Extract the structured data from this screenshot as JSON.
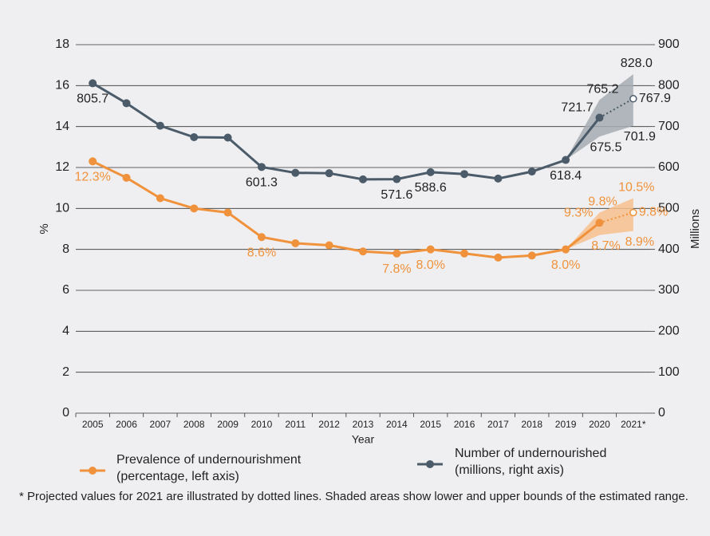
{
  "chart_data": {
    "type": "line",
    "y_label": "%",
    "y2_label": "Millions",
    "x_label": "Year",
    "footnote": "*  Projected values for 2021 are illustrated by dotted lines. Shaded areas show lower and upper bounds of the estimated range.",
    "categories": [
      "2005",
      "2006",
      "2007",
      "2008",
      "2009",
      "2010",
      "2011",
      "2012",
      "2013",
      "2014",
      "2015",
      "2016",
      "2017",
      "2018",
      "2019",
      "2020",
      "2021*"
    ],
    "ylim": [
      0,
      18
    ],
    "yticks": [
      0,
      2,
      4,
      6,
      8,
      10,
      12,
      14,
      16,
      18
    ],
    "y2lim": [
      0,
      900
    ],
    "y2ticks": [
      0,
      100,
      200,
      300,
      400,
      500,
      600,
      700,
      800,
      900
    ],
    "grid": true,
    "dotted_last_segment": true,
    "series": [
      {
        "name": "Prevalence of undernourishment\n(percentage, left axis)",
        "color": "#f0923b",
        "band_color": "#f7c08d",
        "values": [
          12.3,
          11.5,
          10.5,
          10.0,
          9.8,
          8.6,
          8.3,
          8.2,
          7.9,
          7.8,
          8.0,
          7.8,
          7.6,
          7.7,
          8.0,
          9.3,
          9.8
        ],
        "value_labels": [
          "12.3%",
          null,
          null,
          null,
          null,
          "8.6%",
          null,
          null,
          null,
          "7.8%",
          "8.0%",
          null,
          null,
          null,
          "8.0%",
          "9.3%",
          "9.8%"
        ],
        "lower": [
          null,
          null,
          null,
          null,
          null,
          null,
          null,
          null,
          null,
          null,
          null,
          null,
          null,
          null,
          null,
          8.7,
          8.9
        ],
        "lower_labels": [
          null,
          null,
          null,
          null,
          null,
          null,
          null,
          null,
          null,
          null,
          null,
          null,
          null,
          null,
          null,
          "8.7%",
          "8.9%"
        ],
        "upper": [
          null,
          null,
          null,
          null,
          null,
          null,
          null,
          null,
          null,
          null,
          null,
          null,
          null,
          null,
          null,
          9.8,
          10.5
        ],
        "upper_labels": [
          null,
          null,
          null,
          null,
          null,
          null,
          null,
          null,
          null,
          null,
          null,
          null,
          null,
          null,
          null,
          "9.8%",
          "10.5%"
        ]
      },
      {
        "name": "Number of undernourished\n(millions, right axis)",
        "color": "#4b5b69",
        "band_color": "#a4abb3",
        "axis": "y2",
        "values": [
          805.7,
          757,
          702,
          674,
          673,
          601.3,
          587,
          586,
          571,
          571.6,
          588.6,
          584,
          573,
          590,
          618.4,
          721.7,
          767.9
        ],
        "value_labels": [
          "805.7",
          null,
          null,
          null,
          null,
          "601.3",
          null,
          null,
          null,
          "571.6",
          "588.6",
          null,
          null,
          null,
          "618.4",
          "721.7",
          "767.9"
        ],
        "lower": [
          null,
          null,
          null,
          null,
          null,
          null,
          null,
          null,
          null,
          null,
          null,
          null,
          null,
          null,
          null,
          675.5,
          701.9
        ],
        "lower_labels": [
          null,
          null,
          null,
          null,
          null,
          null,
          null,
          null,
          null,
          null,
          null,
          null,
          null,
          null,
          null,
          "675.5",
          "701.9"
        ],
        "upper": [
          null,
          null,
          null,
          null,
          null,
          null,
          null,
          null,
          null,
          null,
          null,
          null,
          null,
          null,
          null,
          765.2,
          828
        ],
        "upper_labels": [
          null,
          null,
          null,
          null,
          null,
          null,
          null,
          null,
          null,
          null,
          null,
          null,
          null,
          null,
          null,
          "765.2",
          "828.0"
        ]
      }
    ]
  }
}
